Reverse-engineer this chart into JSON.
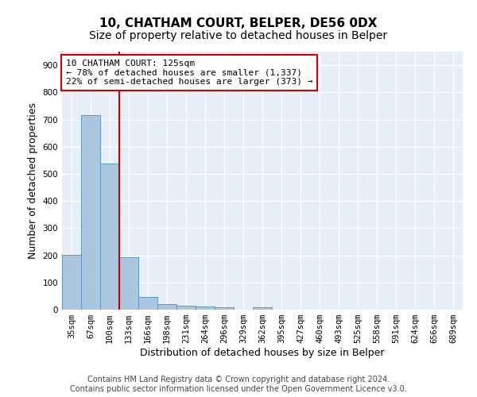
{
  "title": "10, CHATHAM COURT, BELPER, DE56 0DX",
  "subtitle": "Size of property relative to detached houses in Belper",
  "xlabel": "Distribution of detached houses by size in Belper",
  "ylabel": "Number of detached properties",
  "categories": [
    "35sqm",
    "67sqm",
    "100sqm",
    "133sqm",
    "166sqm",
    "198sqm",
    "231sqm",
    "264sqm",
    "296sqm",
    "329sqm",
    "362sqm",
    "395sqm",
    "427sqm",
    "460sqm",
    "493sqm",
    "525sqm",
    "558sqm",
    "591sqm",
    "624sqm",
    "656sqm",
    "689sqm"
  ],
  "values": [
    202,
    716,
    537,
    193,
    46,
    20,
    15,
    12,
    10,
    0,
    9,
    0,
    0,
    0,
    0,
    0,
    0,
    0,
    0,
    0,
    0
  ],
  "bar_color": "#adc6e0",
  "bar_edge_color": "#5a9ac5",
  "property_line_x": 2.5,
  "property_line_color": "#cc0000",
  "annotation_line1": "10 CHATHAM COURT: 125sqm",
  "annotation_line2": "← 78% of detached houses are smaller (1,337)",
  "annotation_line3": "22% of semi-detached houses are larger (373) →",
  "annotation_box_color": "white",
  "annotation_box_edge_color": "#cc0000",
  "ylim": [
    0,
    950
  ],
  "yticks": [
    0,
    100,
    200,
    300,
    400,
    500,
    600,
    700,
    800,
    900
  ],
  "bg_color": "#e8eef8",
  "grid_color": "white",
  "footer_text": "Contains HM Land Registry data © Crown copyright and database right 2024.\nContains public sector information licensed under the Open Government Licence v3.0.",
  "title_fontsize": 11,
  "subtitle_fontsize": 10,
  "xlabel_fontsize": 9,
  "ylabel_fontsize": 9,
  "tick_fontsize": 7.5,
  "annotation_fontsize": 8,
  "footer_fontsize": 7
}
